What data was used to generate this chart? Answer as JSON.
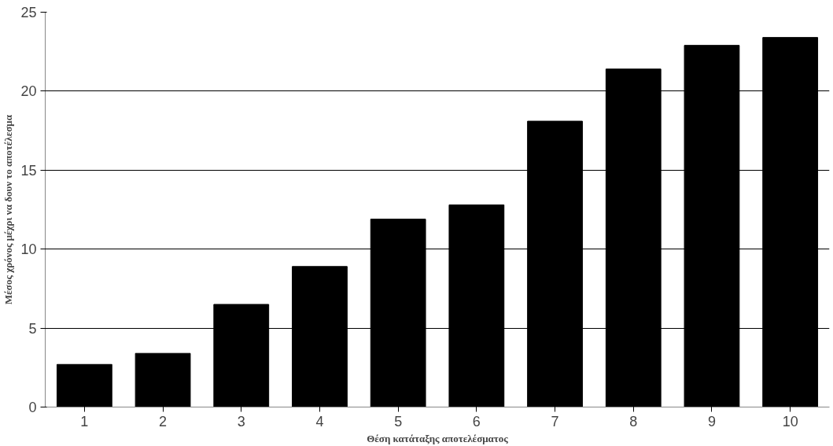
{
  "chart_data": {
    "type": "bar",
    "xlabel": "Θέση κατάταξης αποτελέσματος",
    "ylabel": "Μέσος χρόνος μέχρι να δουν το αποτέλεσμα",
    "categories": [
      "1",
      "2",
      "3",
      "4",
      "5",
      "6",
      "7",
      "8",
      "9",
      "10"
    ],
    "values": [
      2.7,
      3.4,
      6.5,
      8.9,
      11.9,
      12.8,
      18.1,
      21.4,
      22.9,
      23.4
    ],
    "color": "#000000",
    "ylim": [
      0,
      25
    ],
    "yticks": [
      0,
      5,
      10,
      15,
      20,
      25
    ],
    "grid": "y"
  }
}
